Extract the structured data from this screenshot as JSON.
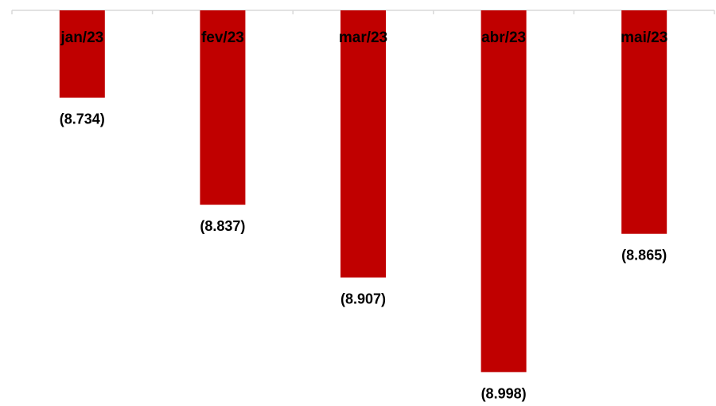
{
  "chart_data": {
    "type": "bar",
    "categories": [
      "jan/23",
      "fev/23",
      "mar/23",
      "abr/23",
      "mai/23"
    ],
    "values": [
      -8734,
      -8837,
      -8907,
      -8998,
      -8865
    ],
    "value_labels": [
      "(8.734)",
      "(8.837)",
      "(8.907)",
      "(8.998)",
      "(8.865)"
    ],
    "title": "",
    "xlabel": "",
    "ylabel": "",
    "ylim": [
      -9000,
      -8650
    ],
    "grid": false,
    "legend": "none",
    "colors": {
      "bar": "#C00000",
      "axis": "#D9D9D9",
      "text": "#000000"
    }
  }
}
